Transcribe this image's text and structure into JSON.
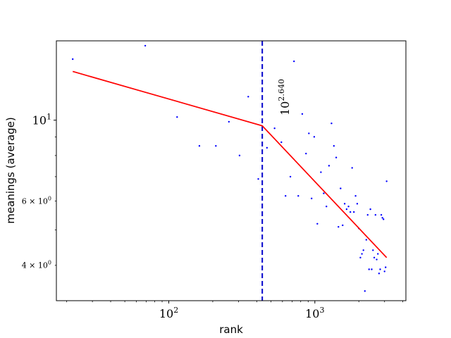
{
  "chart_data": {
    "type": "scatter",
    "xlabel": "rank",
    "ylabel": "meanings (average)",
    "xscale": "log",
    "yscale": "log",
    "xlim": [
      17,
      4200
    ],
    "ylim": [
      3.2,
      16.5
    ],
    "grid": false,
    "legend": "none",
    "x_ticks": [
      {
        "value": 100,
        "base": "10",
        "exp": "2"
      },
      {
        "value": 1000,
        "base": "10",
        "exp": "3"
      }
    ],
    "y_ticks": [
      {
        "value": 10,
        "base": "10",
        "exp": "1",
        "major": true
      },
      {
        "value": 6,
        "text": "6 × 10",
        "exp": "0",
        "major": false
      },
      {
        "value": 4,
        "text": "4 × 10",
        "exp": "0",
        "major": false
      }
    ],
    "breakpoint": {
      "x": 436.5,
      "label_base": "10",
      "label_exp": "2.640",
      "color": "#0000cc"
    },
    "fit_line": {
      "color": "#ff0000",
      "points": [
        [
          22,
          13.6
        ],
        [
          436.5,
          9.65
        ],
        [
          3100,
          4.2
        ]
      ]
    },
    "points_color": "#0000ff",
    "points": [
      [
        22,
        14.7
      ],
      [
        69,
        16.0
      ],
      [
        114,
        10.2
      ],
      [
        162,
        8.5
      ],
      [
        210,
        8.5
      ],
      [
        258,
        9.9
      ],
      [
        305,
        8.0
      ],
      [
        350,
        11.6
      ],
      [
        410,
        6.9
      ],
      [
        470,
        8.4
      ],
      [
        530,
        9.5
      ],
      [
        590,
        8.7
      ],
      [
        630,
        6.2
      ],
      [
        680,
        7.0
      ],
      [
        720,
        14.5
      ],
      [
        770,
        6.2
      ],
      [
        820,
        10.4
      ],
      [
        870,
        8.1
      ],
      [
        910,
        9.2
      ],
      [
        950,
        6.1
      ],
      [
        990,
        9.0
      ],
      [
        1040,
        5.2
      ],
      [
        1100,
        7.2
      ],
      [
        1150,
        6.3
      ],
      [
        1200,
        5.8
      ],
      [
        1250,
        7.5
      ],
      [
        1300,
        9.8
      ],
      [
        1350,
        8.5
      ],
      [
        1400,
        7.9
      ],
      [
        1450,
        5.1
      ],
      [
        1500,
        6.5
      ],
      [
        1550,
        5.15
      ],
      [
        1600,
        5.9
      ],
      [
        1650,
        5.7
      ],
      [
        1700,
        5.8
      ],
      [
        1750,
        5.6
      ],
      [
        1800,
        7.4
      ],
      [
        1850,
        5.6
      ],
      [
        1900,
        6.2
      ],
      [
        1950,
        5.9
      ],
      [
        2000,
        5.05
      ],
      [
        2050,
        4.2
      ],
      [
        2100,
        4.3
      ],
      [
        2150,
        4.4
      ],
      [
        2200,
        3.4
      ],
      [
        2250,
        4.7
      ],
      [
        2300,
        5.5
      ],
      [
        2350,
        3.9
      ],
      [
        2400,
        5.7
      ],
      [
        2450,
        3.9
      ],
      [
        2500,
        4.4
      ],
      [
        2550,
        4.2
      ],
      [
        2600,
        5.5
      ],
      [
        2650,
        4.15
      ],
      [
        2700,
        4.3
      ],
      [
        2750,
        3.8
      ],
      [
        2800,
        3.9
      ],
      [
        2850,
        5.5
      ],
      [
        2900,
        5.4
      ],
      [
        2950,
        5.35
      ],
      [
        3000,
        3.85
      ],
      [
        3050,
        3.95
      ],
      [
        3100,
        6.8
      ]
    ]
  }
}
